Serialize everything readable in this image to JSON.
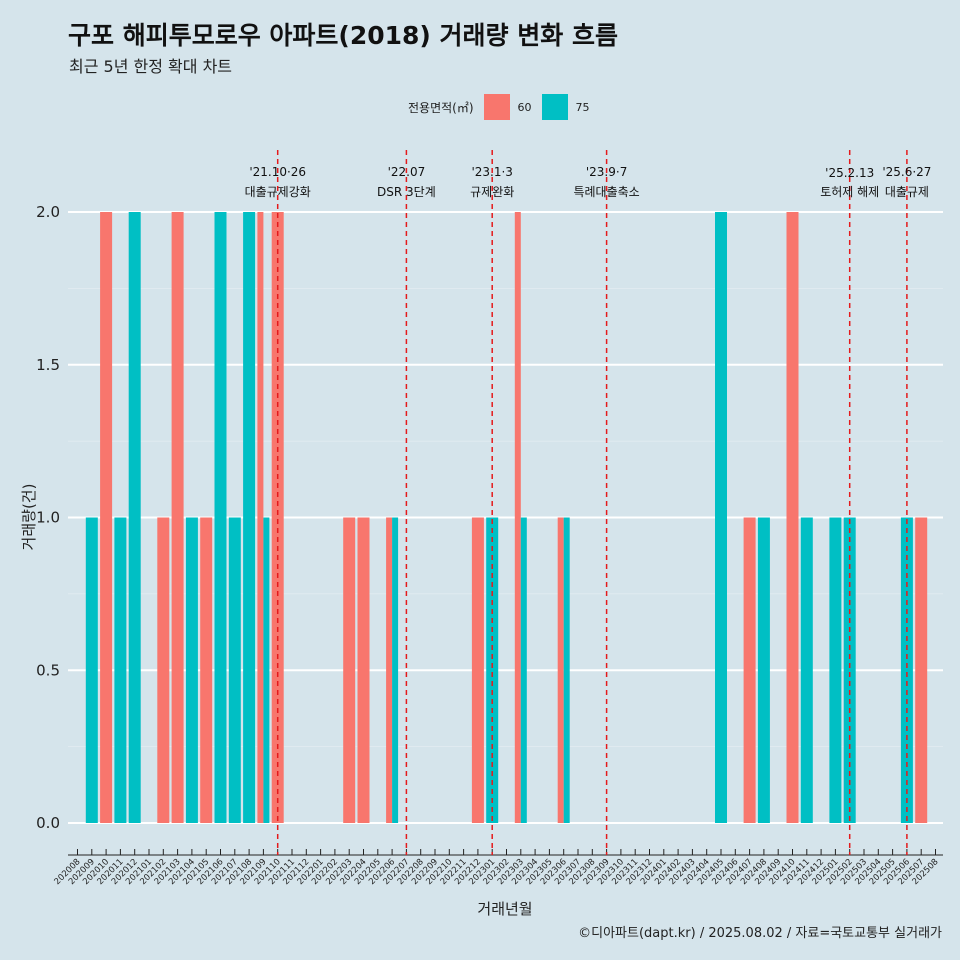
{
  "title": "구포 해피투모로우 아파트(2018) 거래량 변화 흐름",
  "subtitle": "최근 5년 한정 확대 차트",
  "caption": "©디아파트(dapt.kr) / 2025.08.02 / 자료=국토교통부 실거래가",
  "colors": {
    "60": "#f8766d",
    "75": "#00bfc4",
    "vline": "#e41a1c",
    "background": "#d5e4eb",
    "grid": "#ffffff"
  },
  "chart_data": {
    "type": "bar",
    "xlabel": "거래년월",
    "ylabel": "거래량(건)",
    "ylim": [
      0,
      2
    ],
    "yticks": [
      "0.0",
      "0.5",
      "1.0",
      "1.5",
      "2.0"
    ],
    "legend": {
      "title": "전용면적(㎡)",
      "position": "top",
      "items": [
        "60",
        "75"
      ]
    },
    "categories": [
      "202008",
      "202009",
      "202010",
      "202011",
      "202012",
      "202101",
      "202102",
      "202103",
      "202104",
      "202105",
      "202106",
      "202107",
      "202108",
      "202109",
      "202110",
      "202111",
      "202112",
      "202201",
      "202202",
      "202203",
      "202204",
      "202205",
      "202206",
      "202207",
      "202208",
      "202209",
      "202210",
      "202211",
      "202212",
      "202301",
      "202302",
      "202303",
      "202304",
      "202305",
      "202306",
      "202307",
      "202308",
      "202309",
      "202310",
      "202311",
      "202312",
      "202401",
      "202402",
      "202403",
      "202404",
      "202405",
      "202406",
      "202407",
      "202408",
      "202409",
      "202410",
      "202411",
      "202412",
      "202501",
      "202502",
      "202503",
      "202504",
      "202505",
      "202506",
      "202507",
      "202508"
    ],
    "series": [
      {
        "name": "60",
        "values": [
          0,
          0,
          2,
          0,
          0,
          0,
          1,
          2,
          0,
          1,
          0,
          0,
          0,
          2,
          2,
          0,
          0,
          0,
          0,
          1,
          1,
          0,
          1,
          0,
          0,
          0,
          0,
          0,
          1,
          0,
          0,
          2,
          0,
          0,
          1,
          0,
          0,
          0,
          0,
          0,
          0,
          0,
          0,
          0,
          0,
          0,
          0,
          1,
          0,
          0,
          2,
          0,
          0,
          0,
          0,
          0,
          0,
          0,
          0,
          1,
          0
        ]
      },
      {
        "name": "75",
        "values": [
          0,
          1,
          0,
          1,
          2,
          0,
          0,
          0,
          1,
          0,
          2,
          1,
          2,
          1,
          0,
          0,
          0,
          0,
          0,
          0,
          0,
          0,
          1,
          0,
          0,
          0,
          0,
          0,
          0,
          1,
          0,
          1,
          0,
          0,
          1,
          0,
          0,
          0,
          0,
          0,
          0,
          0,
          0,
          0,
          0,
          2,
          0,
          0,
          1,
          0,
          0,
          1,
          0,
          1,
          1,
          0,
          0,
          0,
          1,
          0,
          0
        ]
      }
    ],
    "annotations": [
      {
        "x": "202110",
        "date": "'21.10·26",
        "label": "대출규제강화"
      },
      {
        "x": "202207",
        "date": "'22.07",
        "label": "DSR 3단계"
      },
      {
        "x": "202301",
        "date": "'23.1·3",
        "label": "규제완화"
      },
      {
        "x": "202309",
        "date": "'23.9·7",
        "label": "특례대출축소"
      },
      {
        "x": "202502",
        "date": "'25.2.13",
        "label": "토허제 해제"
      },
      {
        "x": "202506",
        "date": "'25.6·27",
        "label": "대출규제"
      }
    ]
  }
}
